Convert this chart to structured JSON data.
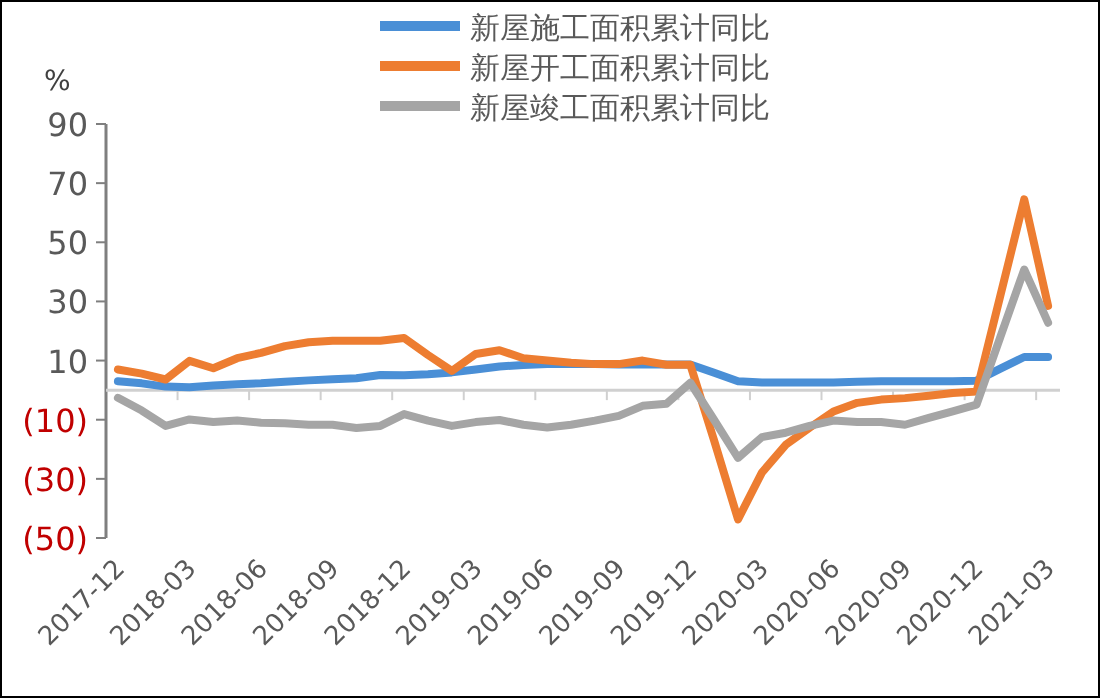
{
  "chart_data": {
    "type": "line",
    "ylabel": "%",
    "categories": [
      "2017-12",
      null,
      null,
      "2018-03",
      null,
      null,
      "2018-06",
      null,
      null,
      "2018-09",
      null,
      null,
      "2018-12",
      null,
      null,
      "2019-03",
      null,
      null,
      "2019-06",
      null,
      null,
      "2019-09",
      null,
      null,
      "2019-12",
      null,
      null,
      "2020-03",
      null,
      null,
      "2020-06",
      null,
      null,
      "2020-09",
      null,
      null,
      "2020-12",
      null,
      null,
      "2021-03"
    ],
    "series": [
      {
        "name": "新屋施工面积累计同比",
        "color": "#4a8fd6",
        "values": [
          3.0,
          2.3,
          1.2,
          1.0,
          1.6,
          2.0,
          2.3,
          2.8,
          3.3,
          3.7,
          4.0,
          5.1,
          5.0,
          5.4,
          6.0,
          7.0,
          8.0,
          8.5,
          8.8,
          8.8,
          8.8,
          8.7,
          8.7,
          8.7,
          8.7,
          5.9,
          3.0,
          2.6,
          2.6,
          2.6,
          2.6,
          2.8,
          3.0,
          3.0,
          3.0,
          3.0,
          3.2,
          7.3,
          11.2,
          11.2
        ]
      },
      {
        "name": "新屋开工面积累计同比",
        "color": "#ed7d31",
        "values": [
          7.0,
          5.6,
          3.6,
          9.9,
          7.4,
          10.8,
          12.6,
          14.9,
          16.2,
          16.7,
          16.7,
          16.7,
          17.6,
          11.9,
          6.5,
          12.2,
          13.5,
          10.8,
          10.0,
          9.3,
          8.8,
          8.8,
          10.0,
          8.6,
          8.6,
          -17.1,
          -43.7,
          -27.9,
          -18.5,
          -12.7,
          -7.2,
          -4.3,
          -3.2,
          -2.7,
          -1.9,
          -1.0,
          -0.5,
          32.0,
          64.5,
          28.5
        ]
      },
      {
        "name": "新屋竣工面积累计同比",
        "color": "#a5a5a5",
        "values": [
          -2.6,
          -6.9,
          -12.1,
          -9.9,
          -10.8,
          -10.3,
          -11.0,
          -11.2,
          -11.7,
          -11.7,
          -12.8,
          -12.1,
          -8.1,
          -10.3,
          -12.1,
          -10.8,
          -10.1,
          -11.7,
          -12.6,
          -11.7,
          -10.3,
          -8.7,
          -5.3,
          -4.6,
          2.5,
          -10.1,
          -22.9,
          -15.9,
          -14.4,
          -12.1,
          -10.3,
          -10.8,
          -10.8,
          -11.7,
          -9.4,
          -7.2,
          -4.9,
          18.0,
          40.8,
          22.8
        ]
      }
    ],
    "ylim": [
      -50,
      90
    ],
    "yticks": [
      {
        "value": -50,
        "label": "(50)"
      },
      {
        "value": -30,
        "label": "(30)"
      },
      {
        "value": -10,
        "label": "(10)"
      },
      10,
      30,
      50,
      70,
      90
    ],
    "legend": "top",
    "grid": false,
    "marker": "none",
    "line_style": "solid"
  }
}
